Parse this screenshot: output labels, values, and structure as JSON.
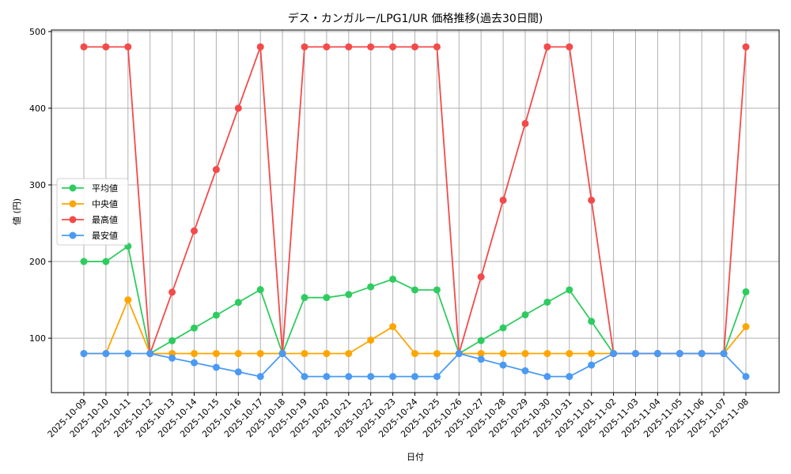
{
  "chart_data": {
    "type": "line",
    "title": "デス・カンガルー/LPG1/UR 価格推移(過去30日間)",
    "xlabel": "日付",
    "ylabel": "値 (円)",
    "ylim": [
      29,
      502
    ],
    "yticks": [
      100,
      200,
      300,
      400,
      500
    ],
    "grid": true,
    "legend_position": "center left",
    "categories": [
      "2025-10-09",
      "2025-10-10",
      "2025-10-11",
      "2025-10-12",
      "2025-10-13",
      "2025-10-14",
      "2025-10-15",
      "2025-10-16",
      "2025-10-17",
      "2025-10-18",
      "2025-10-19",
      "2025-10-20",
      "2025-10-21",
      "2025-10-22",
      "2025-10-23",
      "2025-10-24",
      "2025-10-25",
      "2025-10-26",
      "2025-10-27",
      "2025-10-28",
      "2025-10-29",
      "2025-10-30",
      "2025-10-31",
      "2025-11-01",
      "2025-11-02",
      "2025-11-03",
      "2025-11-04",
      "2025-11-05",
      "2025-11-06",
      "2025-11-07",
      "2025-11-08"
    ],
    "series": [
      {
        "name": "平均値",
        "color": "#2ecc5f",
        "values": [
          200,
          200,
          220,
          80,
          96.7,
          113.3,
          130,
          146.7,
          163.3,
          80,
          153,
          153,
          157,
          167,
          177,
          163,
          163,
          80,
          97,
          113.5,
          130.5,
          147,
          163,
          122,
          80,
          80,
          80,
          80,
          80,
          80,
          160.5
        ]
      },
      {
        "name": "中央値",
        "color": "#ffa500",
        "values": [
          80,
          80,
          150,
          80,
          80,
          80,
          80,
          80,
          80,
          80,
          80,
          80,
          80,
          97.5,
          115,
          80,
          80,
          80,
          80,
          80,
          80,
          80,
          80,
          80,
          80,
          80,
          80,
          80,
          80,
          80,
          115
        ]
      },
      {
        "name": "最高値",
        "color": "#f44a4a",
        "values": [
          480,
          480,
          480,
          80,
          160,
          240,
          320,
          400,
          480,
          80,
          480,
          480,
          480,
          480,
          480,
          480,
          480,
          80,
          180,
          280,
          380,
          480,
          480,
          280,
          80,
          80,
          80,
          80,
          80,
          80,
          480
        ]
      },
      {
        "name": "最安値",
        "color": "#4a9af4",
        "values": [
          80,
          80,
          80,
          80,
          74,
          68,
          62,
          56,
          50,
          80,
          50,
          50,
          50,
          50,
          50,
          50,
          50,
          80,
          72.5,
          65,
          57.5,
          50,
          50,
          65,
          80,
          80,
          80,
          80,
          80,
          80,
          50
        ]
      }
    ]
  }
}
